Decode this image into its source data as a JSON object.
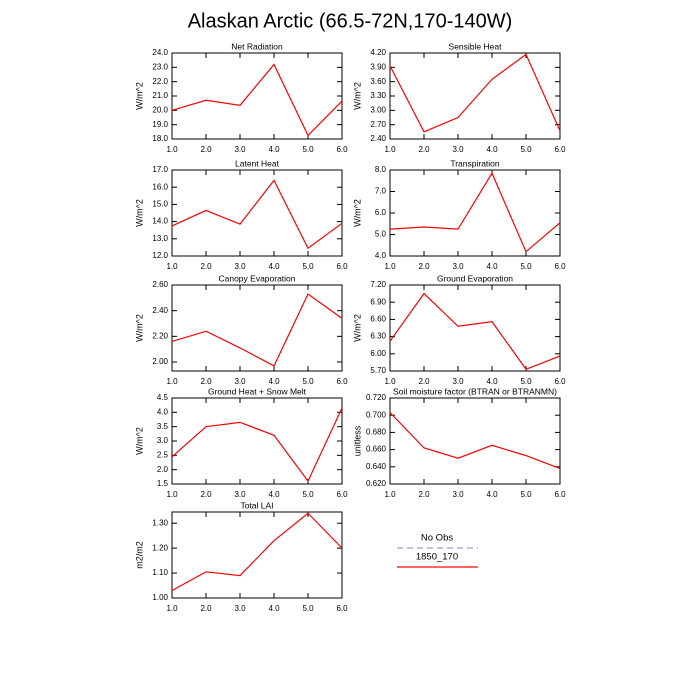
{
  "title": "Alaskan Arctic (66.5-72N,170-140W)",
  "legend": [
    {
      "name": "No Obs",
      "color": "#9a9ae0",
      "dashed": true
    },
    {
      "name": "1850_170",
      "color": "#ff0000",
      "dashed": false
    }
  ],
  "chart_data": [
    {
      "type": "line",
      "title": "Net Radiation",
      "ylabel": "W/m^2",
      "color": "#ff0000",
      "x": [
        1,
        2,
        3,
        4,
        5,
        6
      ],
      "xlim": [
        1,
        6
      ],
      "xticks": [
        {
          "value": 1,
          "label": "1.0"
        },
        {
          "value": 2,
          "label": "2.0"
        },
        {
          "value": 3,
          "label": "3.0"
        },
        {
          "value": 4,
          "label": "4.0"
        },
        {
          "value": 5,
          "label": "5.0"
        },
        {
          "value": 6,
          "label": "6.0"
        }
      ],
      "values": [
        20.0,
        20.7,
        20.35,
        23.2,
        18.25,
        20.65
      ],
      "ylim": [
        18,
        24
      ],
      "yticks": [
        {
          "value": 18,
          "label": "18.0"
        },
        {
          "value": 19,
          "label": "19.0"
        },
        {
          "value": 20,
          "label": "20.0"
        },
        {
          "value": 21,
          "label": "21.0"
        },
        {
          "value": 22,
          "label": "22.0"
        },
        {
          "value": 23,
          "label": "23.0"
        },
        {
          "value": 24,
          "label": "24.0"
        }
      ]
    },
    {
      "type": "line",
      "title": "Sensible Heat",
      "ylabel": "W/m^2",
      "color": "#ff0000",
      "x": [
        1,
        2,
        3,
        4,
        5,
        6
      ],
      "xlim": [
        1,
        6
      ],
      "xticks": [
        {
          "value": 1,
          "label": "1.0"
        },
        {
          "value": 2,
          "label": "2.0"
        },
        {
          "value": 3,
          "label": "3.0"
        },
        {
          "value": 4,
          "label": "4.0"
        },
        {
          "value": 5,
          "label": "5.0"
        },
        {
          "value": 6,
          "label": "6.0"
        }
      ],
      "values": [
        3.93,
        2.55,
        2.85,
        3.65,
        4.17,
        2.57
      ],
      "ylim": [
        2.4,
        4.2
      ],
      "yticks": [
        {
          "value": 2.4,
          "label": "2.40"
        },
        {
          "value": 2.7,
          "label": "2.70"
        },
        {
          "value": 3.0,
          "label": "3.00"
        },
        {
          "value": 3.3,
          "label": "3.30"
        },
        {
          "value": 3.6,
          "label": "3.60"
        },
        {
          "value": 3.9,
          "label": "3.90"
        },
        {
          "value": 4.2,
          "label": "4.20"
        }
      ]
    },
    {
      "type": "line",
      "title": "Latent Heat",
      "ylabel": "W/m^2",
      "color": "#ff0000",
      "x": [
        1,
        2,
        3,
        4,
        5,
        6
      ],
      "xlim": [
        1,
        6
      ],
      "xticks": [
        {
          "value": 1,
          "label": "1.0"
        },
        {
          "value": 2,
          "label": "2.0"
        },
        {
          "value": 3,
          "label": "3.0"
        },
        {
          "value": 4,
          "label": "4.0"
        },
        {
          "value": 5,
          "label": "5.0"
        },
        {
          "value": 6,
          "label": "6.0"
        }
      ],
      "values": [
        13.75,
        14.65,
        13.85,
        16.4,
        12.45,
        13.9
      ],
      "ylim": [
        12,
        17
      ],
      "yticks": [
        {
          "value": 12,
          "label": "12.0"
        },
        {
          "value": 13,
          "label": "13.0"
        },
        {
          "value": 14,
          "label": "14.0"
        },
        {
          "value": 15,
          "label": "15.0"
        },
        {
          "value": 16,
          "label": "16.0"
        },
        {
          "value": 17,
          "label": "17.0"
        }
      ]
    },
    {
      "type": "line",
      "title": "Transpiration",
      "ylabel": "W/m^2",
      "color": "#ff0000",
      "x": [
        1,
        2,
        3,
        4,
        5,
        6
      ],
      "xlim": [
        1,
        6
      ],
      "xticks": [
        {
          "value": 1,
          "label": "1.0"
        },
        {
          "value": 2,
          "label": "2.0"
        },
        {
          "value": 3,
          "label": "3.0"
        },
        {
          "value": 4,
          "label": "4.0"
        },
        {
          "value": 5,
          "label": "5.0"
        },
        {
          "value": 6,
          "label": "6.0"
        }
      ],
      "values": [
        5.25,
        5.35,
        5.25,
        7.85,
        4.2,
        5.55
      ],
      "ylim": [
        4,
        8
      ],
      "yticks": [
        {
          "value": 4,
          "label": "4.0"
        },
        {
          "value": 5,
          "label": "5.0"
        },
        {
          "value": 6,
          "label": "6.0"
        },
        {
          "value": 7,
          "label": "7.0"
        },
        {
          "value": 8,
          "label": "8.0"
        }
      ]
    },
    {
      "type": "line",
      "title": "Canopy Evaporation",
      "ylabel": "W/m^2",
      "color": "#ff0000",
      "x": [
        1,
        2,
        3,
        4,
        5,
        6
      ],
      "xlim": [
        1,
        6
      ],
      "xticks": [
        {
          "value": 1,
          "label": "1.0"
        },
        {
          "value": 2,
          "label": "2.0"
        },
        {
          "value": 3,
          "label": "3.0"
        },
        {
          "value": 4,
          "label": "4.0"
        },
        {
          "value": 5,
          "label": "5.0"
        },
        {
          "value": 6,
          "label": "6.0"
        }
      ],
      "values": [
        2.16,
        2.24,
        2.11,
        1.97,
        2.53,
        2.34
      ],
      "ylim": [
        1.93,
        2.6
      ],
      "yticks": [
        {
          "value": 2.0,
          "label": "2.00"
        },
        {
          "value": 2.2,
          "label": "2.20"
        },
        {
          "value": 2.4,
          "label": "2.40"
        },
        {
          "value": 2.6,
          "label": "2.60"
        }
      ]
    },
    {
      "type": "line",
      "title": "Ground Evaporation",
      "ylabel": "W/m^2",
      "color": "#ff0000",
      "x": [
        1,
        2,
        3,
        4,
        5,
        6
      ],
      "xlim": [
        1,
        6
      ],
      "xticks": [
        {
          "value": 1,
          "label": "1.0"
        },
        {
          "value": 2,
          "label": "2.0"
        },
        {
          "value": 3,
          "label": "3.0"
        },
        {
          "value": 4,
          "label": "4.0"
        },
        {
          "value": 5,
          "label": "5.0"
        },
        {
          "value": 6,
          "label": "6.0"
        }
      ],
      "values": [
        6.22,
        7.05,
        6.48,
        6.56,
        5.73,
        5.96
      ],
      "ylim": [
        5.7,
        7.2
      ],
      "yticks": [
        {
          "value": 5.7,
          "label": "5.70"
        },
        {
          "value": 6.0,
          "label": "6.00"
        },
        {
          "value": 6.3,
          "label": "6.30"
        },
        {
          "value": 6.6,
          "label": "6.60"
        },
        {
          "value": 6.9,
          "label": "6.90"
        },
        {
          "value": 7.2,
          "label": "7.20"
        }
      ]
    },
    {
      "type": "line",
      "title": "Ground Heat + Snow Melt",
      "ylabel": "W/m^2",
      "color": "#ff0000",
      "x": [
        1,
        2,
        3,
        4,
        5,
        6
      ],
      "xlim": [
        1,
        6
      ],
      "xticks": [
        {
          "value": 1,
          "label": "1.0"
        },
        {
          "value": 2,
          "label": "2.0"
        },
        {
          "value": 3,
          "label": "3.0"
        },
        {
          "value": 4,
          "label": "4.0"
        },
        {
          "value": 5,
          "label": "5.0"
        },
        {
          "value": 6,
          "label": "6.0"
        }
      ],
      "values": [
        2.45,
        3.5,
        3.65,
        3.2,
        1.6,
        4.15
      ],
      "ylim": [
        1.5,
        4.5
      ],
      "yticks": [
        1.5,
        {
          "value": 2,
          "label": "2.0"
        },
        2.5,
        {
          "value": 3,
          "label": "3.0"
        },
        3.5,
        {
          "value": 4,
          "label": "4.0"
        },
        4.5
      ]
    },
    {
      "type": "line",
      "title": "Soil moisture factor (BTRAN or BTRANMN)",
      "ylabel": "unitless",
      "color": "#ff0000",
      "x": [
        1,
        2,
        3,
        4,
        5,
        6
      ],
      "xlim": [
        1,
        6
      ],
      "xticks": [
        {
          "value": 1,
          "label": "1.0"
        },
        {
          "value": 2,
          "label": "2.0"
        },
        {
          "value": 3,
          "label": "3.0"
        },
        {
          "value": 4,
          "label": "4.0"
        },
        {
          "value": 5,
          "label": "5.0"
        },
        {
          "value": 6,
          "label": "6.0"
        }
      ],
      "values": [
        0.703,
        0.662,
        0.65,
        0.665,
        0.653,
        0.638
      ],
      "ylim": [
        0.62,
        0.72
      ],
      "yticks": [
        {
          "value": 0.62,
          "label": "0.620"
        },
        {
          "value": 0.64,
          "label": "0.640"
        },
        {
          "value": 0.66,
          "label": "0.660"
        },
        {
          "value": 0.68,
          "label": "0.680"
        },
        {
          "value": 0.7,
          "label": "0.700"
        },
        {
          "value": 0.72,
          "label": "0.720"
        }
      ]
    },
    {
      "type": "line",
      "title": "Total LAI",
      "ylabel": "m2/m2",
      "color": "#ff0000",
      "x": [
        1,
        2,
        3,
        4,
        5,
        6
      ],
      "xlim": [
        1,
        6
      ],
      "xticks": [
        {
          "value": 1,
          "label": "1.0"
        },
        {
          "value": 2,
          "label": "2.0"
        },
        {
          "value": 3,
          "label": "3.0"
        },
        {
          "value": 4,
          "label": "4.0"
        },
        {
          "value": 5,
          "label": "5.0"
        },
        {
          "value": 6,
          "label": "6.0"
        }
      ],
      "values": [
        1.03,
        1.105,
        1.09,
        1.23,
        1.34,
        1.2
      ],
      "ylim": [
        1.0,
        1.345
      ],
      "yticks": [
        {
          "value": 1.0,
          "label": "1.00"
        },
        {
          "value": 1.1,
          "label": "1.10"
        },
        {
          "value": 1.2,
          "label": "1.20"
        },
        {
          "value": 1.3,
          "label": "1.30"
        }
      ]
    }
  ]
}
